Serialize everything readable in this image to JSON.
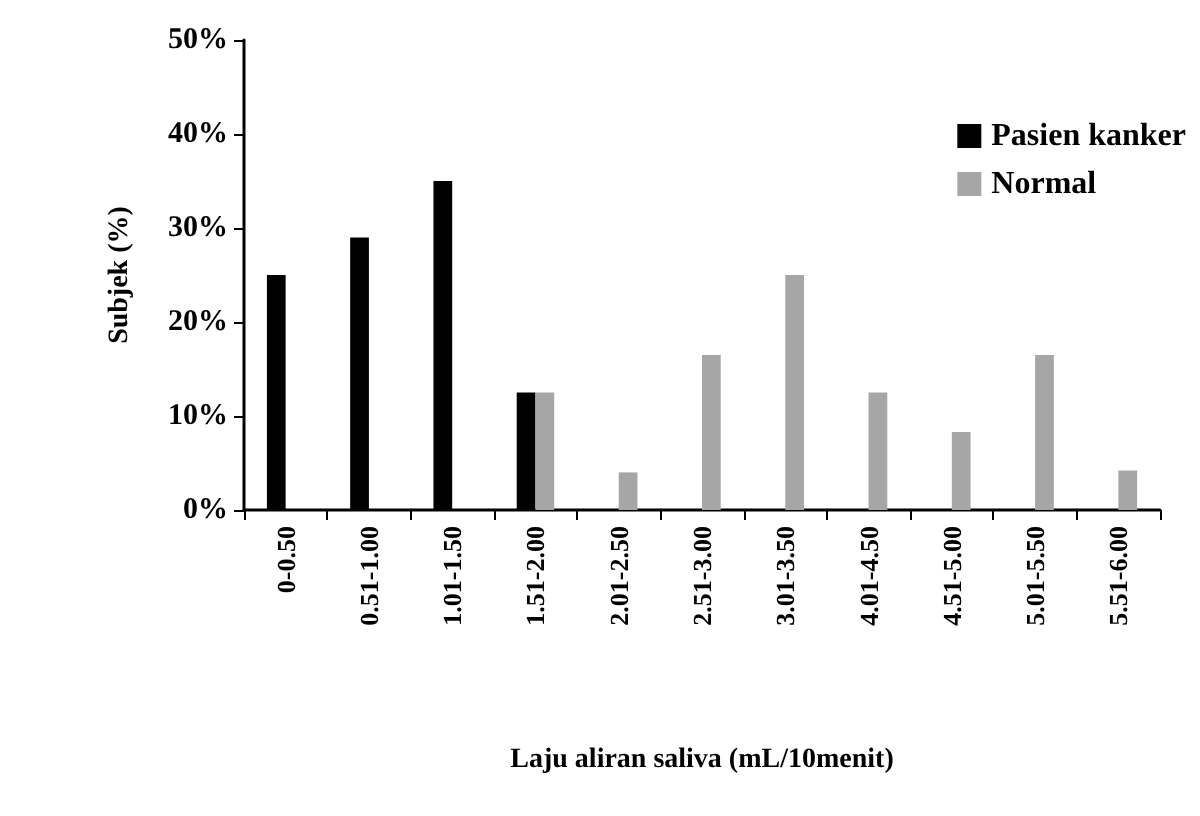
{
  "chart_data": {
    "type": "bar",
    "xlabel": "Laju aliran saliva (mL/10menit)",
    "ylabel": "Subjek (%)",
    "categories": [
      "0-0.50",
      "0.51-1.00",
      "1.01-1.50",
      "1.51-2.00",
      "2.01-2.50",
      "2.51-3.00",
      "3.01-3.50",
      "4.01-4.50",
      "4.51-5.00",
      "5.01-5.50",
      "5.51-6.00"
    ],
    "series": [
      {
        "name": "Pasien kanker",
        "color": "#000000",
        "values": [
          25,
          29,
          35,
          12.5,
          null,
          null,
          null,
          null,
          null,
          null,
          null
        ]
      },
      {
        "name": "Normal",
        "color": "#a6a6a6",
        "values": [
          null,
          null,
          null,
          12.5,
          4,
          16.5,
          25,
          12.5,
          8.3,
          16.5,
          4.2
        ]
      }
    ],
    "ylim": [
      0,
      50
    ],
    "yticks": [
      {
        "value": 0,
        "label": "0%"
      },
      {
        "value": 10,
        "label": "10%"
      },
      {
        "value": 20,
        "label": "20%"
      },
      {
        "value": 30,
        "label": "30%"
      },
      {
        "value": 40,
        "label": "40%"
      },
      {
        "value": 50,
        "label": "50%"
      }
    ],
    "grid": false,
    "legend": "right"
  }
}
